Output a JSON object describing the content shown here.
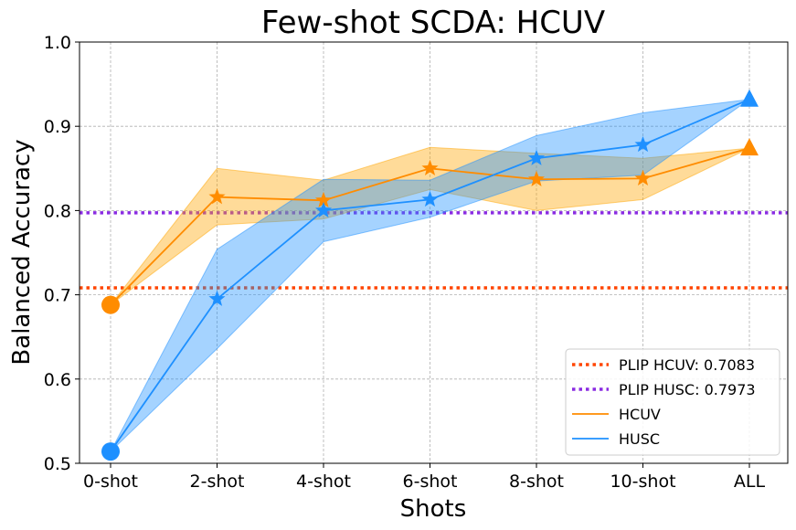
{
  "chart_data": {
    "type": "line",
    "title": "Few-shot SCDA: HCUV",
    "xlabel": "Shots",
    "ylabel": "Balanced Accuracy",
    "categories": [
      "0-shot",
      "2-shot",
      "4-shot",
      "6-shot",
      "8-shot",
      "10-shot",
      "ALL"
    ],
    "ylim": [
      0.5,
      1.0
    ],
    "yticks": [
      "0.5",
      "0.6",
      "0.7",
      "0.8",
      "0.9",
      "1.0"
    ],
    "grid": true,
    "legend_position": "bottom-right",
    "series": [
      {
        "name": "HCUV",
        "color": "#ff8c00",
        "fill_color": "#ffa500",
        "values": [
          0.688,
          0.816,
          0.812,
          0.85,
          0.837,
          0.838,
          0.874
        ],
        "lower": [
          null,
          0.783,
          0.79,
          0.825,
          0.8,
          0.813,
          null
        ],
        "upper": [
          null,
          0.85,
          0.836,
          0.875,
          0.868,
          0.862,
          null
        ],
        "first_marker": "circle",
        "mid_marker": "star",
        "last_marker": "triangle"
      },
      {
        "name": "HUSC",
        "color": "#1e90ff",
        "fill_color": "#1e90ff",
        "values": [
          0.514,
          0.695,
          0.8,
          0.813,
          0.862,
          0.878,
          0.932
        ],
        "lower": [
          null,
          0.636,
          0.763,
          0.792,
          0.835,
          0.842,
          null
        ],
        "upper": [
          null,
          0.754,
          0.837,
          0.836,
          0.889,
          0.916,
          null
        ],
        "first_marker": "circle",
        "mid_marker": "star",
        "last_marker": "triangle"
      }
    ],
    "reference_lines": [
      {
        "name": "PLIP HCUV: 0.7083",
        "value": 0.7083,
        "color": "#ff4500"
      },
      {
        "name": "PLIP HUSC: 0.7973",
        "value": 0.7973,
        "color": "#8a2be2"
      }
    ],
    "legend": [
      {
        "label": "PLIP HCUV: 0.7083",
        "style": "dotted",
        "color": "#ff4500"
      },
      {
        "label": "PLIP HUSC: 0.7973",
        "style": "dotted",
        "color": "#8a2be2"
      },
      {
        "label": "HCUV",
        "style": "solid",
        "color": "#ff8c00"
      },
      {
        "label": "HUSC",
        "style": "solid",
        "color": "#1e90ff"
      }
    ]
  }
}
